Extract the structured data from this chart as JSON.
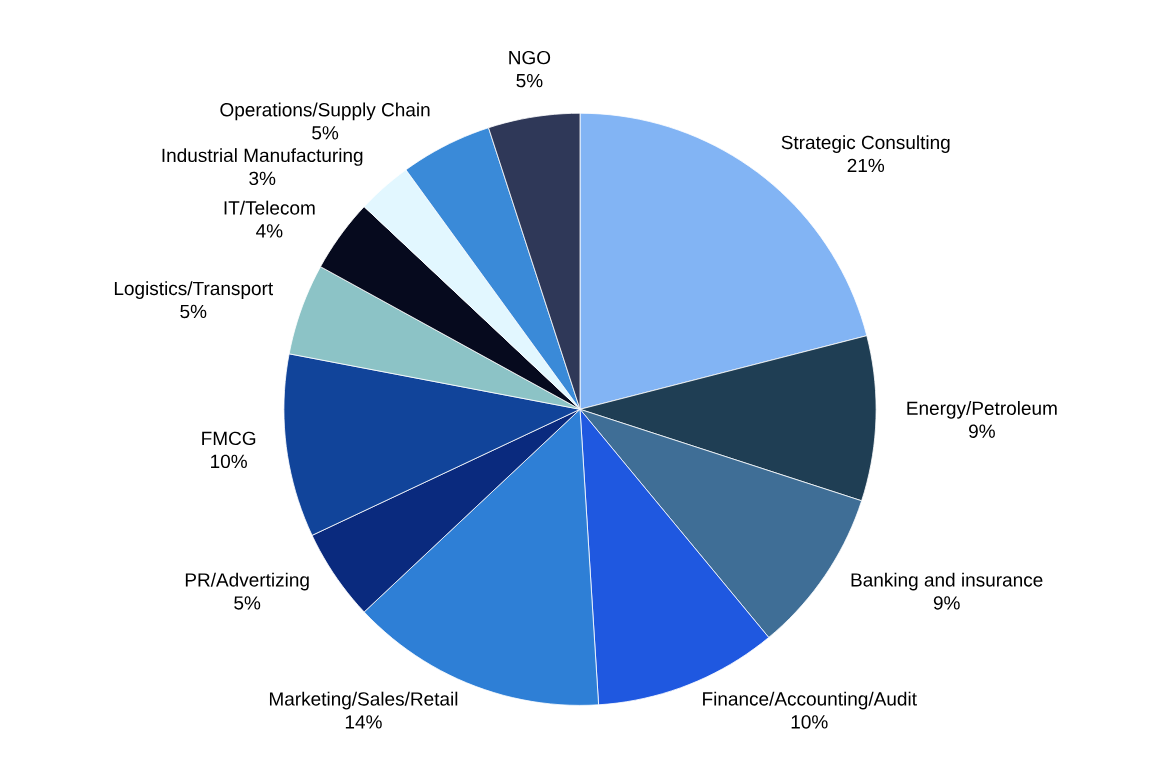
{
  "chart_data": {
    "type": "pie",
    "categories": [
      "Strategic Consulting",
      "Energy/Petroleum",
      "Banking and insurance",
      "Finance/Accounting/Audit",
      "Marketing/Sales/Retail",
      "PR/Advertizing",
      "FMCG",
      "Logistics/Transport",
      "IT/Telecom",
      "Industrial Manufacturing",
      "Operations/Supply Chain",
      "NGO"
    ],
    "values": [
      21,
      9,
      9,
      10,
      14,
      5,
      10,
      5,
      4,
      3,
      5,
      5
    ],
    "value_labels": [
      "21%",
      "9%",
      "9%",
      "10%",
      "14%",
      "5%",
      "10%",
      "5%",
      "4%",
      "3%",
      "5%",
      "5%"
    ],
    "colors": [
      "#82b4f4",
      "#1f3e54",
      "#3f6e96",
      "#1f58e0",
      "#2e7fd6",
      "#0a2a7e",
      "#11449a",
      "#8cc3c6",
      "#060a1e",
      "#e2f7ff",
      "#3a8ad8",
      "#2f3858"
    ]
  }
}
